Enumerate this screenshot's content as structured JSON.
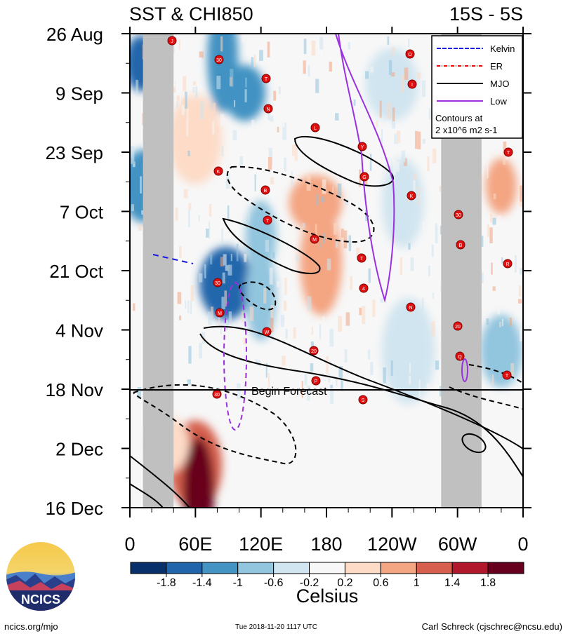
{
  "header": {
    "title": "SST & CHI850",
    "region": "15S - 5S"
  },
  "legend": {
    "items": [
      {
        "label": "Kelvin",
        "color": "#1a1adc",
        "dash": "6,2"
      },
      {
        "label": "ER",
        "color": "#e01010",
        "dash": "5,2,1,2"
      },
      {
        "label": "MJO",
        "color": "#000000",
        "dash": ""
      },
      {
        "label": "Low",
        "color": "#9b30e0",
        "dash": ""
      }
    ],
    "note_line1": "Contours at",
    "note_line2": "2 x10^6 m2 s-1"
  },
  "forecast_label": "Begin Forecast",
  "colorbar": {
    "tick_labels": [
      "-1.8",
      "-1.4",
      "-1",
      "-0.6",
      "-0.2",
      "0.2",
      "0.6",
      "1",
      "1.4",
      "1.8"
    ],
    "colors": [
      "#08306b",
      "#2166ac",
      "#4393c3",
      "#92c5de",
      "#d1e5f0",
      "#f7f7f7",
      "#fddbc7",
      "#f4a582",
      "#d6604d",
      "#b2182b",
      "#67001f"
    ],
    "label": "Celsius"
  },
  "logo": {
    "text": "NCICS"
  },
  "footer": {
    "left": "ncics.org/mjo",
    "middle": "Tue 2018-11-20 1117 UTC",
    "right": "Carl Schreck (cjschrec@ncsu.edu)"
  },
  "chart_data": {
    "type": "heatmap",
    "title": "SST & CHI850",
    "subtitle": "15S - 5S",
    "x_tick_labels": [
      "0",
      "60E",
      "120E",
      "180",
      "120W",
      "60W",
      "0"
    ],
    "x_ticks_deg_east": [
      0,
      60,
      120,
      180,
      240,
      300,
      360
    ],
    "y_tick_labels": [
      "26 Aug",
      "9 Sep",
      "23 Sep",
      "7 Oct",
      "21 Oct",
      "4 Nov",
      "18 Nov",
      "2 Dec",
      "16 Dec"
    ],
    "y_ticks_days_from_26_aug": [
      0,
      14,
      28,
      42,
      56,
      70,
      84,
      98,
      112
    ],
    "xlim": [
      0,
      360
    ],
    "ylim_dates": [
      "26 Aug",
      "16 Dec"
    ],
    "colorbar_levels": [
      -1.8,
      -1.4,
      -1,
      -0.6,
      -0.2,
      0.2,
      0.6,
      1,
      1.4,
      1.8
    ],
    "units": "Celsius",
    "forecast_start": "18 Nov",
    "land_bands_lon": [
      [
        12,
        40
      ],
      [
        285,
        322
      ]
    ],
    "anomaly_blobs": [
      {
        "lon": 10,
        "date": "2 Sep",
        "value": -1.6
      },
      {
        "lon": 12,
        "date": "1 Oct",
        "value": -1.2
      },
      {
        "lon": 60,
        "date": "20 Sep",
        "value": 0.6
      },
      {
        "lon": 85,
        "date": "1 Sep",
        "value": -1.0
      },
      {
        "lon": 105,
        "date": "9 Sep",
        "value": -1.2
      },
      {
        "lon": 88,
        "date": "24 Oct",
        "value": -1.4
      },
      {
        "lon": 120,
        "date": "27 Oct",
        "value": -0.8
      },
      {
        "lon": 175,
        "date": "19 Oct",
        "value": 0.8
      },
      {
        "lon": 170,
        "date": "5 Oct",
        "value": 0.7
      },
      {
        "lon": 120,
        "date": "13 Oct",
        "value": -0.6
      },
      {
        "lon": 250,
        "date": "5 Oct",
        "value": -0.5
      },
      {
        "lon": 255,
        "date": "9 Nov",
        "value": -0.3
      },
      {
        "lon": 340,
        "date": "1 Oct",
        "value": 0.8
      },
      {
        "lon": 340,
        "date": "9 Nov",
        "value": -0.6
      },
      {
        "lon": 60,
        "date": "6 Dec",
        "value": 1.2
      },
      {
        "lon": 63,
        "date": "12 Dec",
        "value": 1.9
      },
      {
        "lon": 35,
        "date": "1 Dec",
        "value": 0.5
      },
      {
        "lon": 240,
        "date": "7 Sep",
        "value": -0.3
      }
    ],
    "storm_labels": [
      "J",
      "N",
      "G",
      "B",
      "M",
      "P",
      "I",
      "T",
      "T",
      "4",
      "Q",
      "30",
      "L",
      "K",
      "R",
      "W",
      "S",
      "L",
      "K",
      "M",
      "N",
      "T",
      "T",
      "Y",
      "30",
      "30",
      "20",
      "O",
      "A",
      "B",
      "T",
      "20",
      "30"
    ]
  }
}
